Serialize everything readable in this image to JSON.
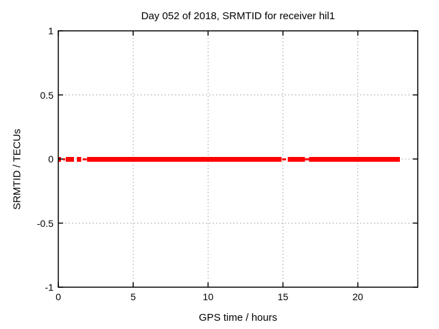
{
  "chart_data": {
    "type": "scatter",
    "title": "Day 052 of 2018, SRMTID for receiver hil1",
    "xlabel": "GPS time / hours",
    "ylabel": "SRMTID / TECUs",
    "xlim": [
      0,
      24
    ],
    "ylim": [
      -1,
      1
    ],
    "xticks": [
      0,
      5,
      10,
      15,
      20
    ],
    "yticks": [
      1,
      0.5,
      0,
      -0.5,
      -1
    ],
    "grid": true,
    "legend": "none",
    "marker": "filled-square",
    "marker_color": "#ff0000",
    "colors": {
      "grid": "#b3b3b3",
      "border": "#000000",
      "text": "#000000",
      "background": "#ffffff"
    },
    "series": [
      {
        "name": "SRMTID",
        "y_value": 0,
        "note": "dense band of points at y ~ 0; spread=thick means larger vertical scatter, thin means near-zero scatter; gaps between segments are missing data",
        "segments": [
          {
            "x_start": 0.0,
            "x_end": 0.18,
            "spread": "thick"
          },
          {
            "x_start": 0.3,
            "x_end": 0.46,
            "spread": "thin"
          },
          {
            "x_start": 0.5,
            "x_end": 1.05,
            "spread": "thick"
          },
          {
            "x_start": 1.24,
            "x_end": 1.53,
            "spread": "thick"
          },
          {
            "x_start": 1.63,
            "x_end": 1.9,
            "spread": "thin"
          },
          {
            "x_start": 1.92,
            "x_end": 14.91,
            "spread": "thick"
          },
          {
            "x_start": 14.95,
            "x_end": 15.21,
            "spread": "thin"
          },
          {
            "x_start": 15.32,
            "x_end": 16.47,
            "spread": "thick"
          },
          {
            "x_start": 16.47,
            "x_end": 16.74,
            "spread": "thin"
          },
          {
            "x_start": 16.74,
            "x_end": 22.81,
            "spread": "thick"
          }
        ]
      }
    ]
  }
}
